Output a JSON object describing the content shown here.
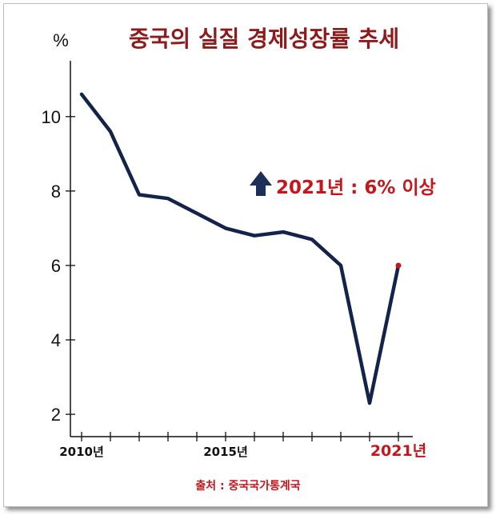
{
  "title": "중국의 실질 경제성장률 추세",
  "source": "출처 : 중국국가통계국",
  "colors": {
    "title": "#8e1b1b",
    "line": "#13234a",
    "highlight": "#c4171c",
    "arrow": "#1b2f57",
    "axis": "#111111"
  },
  "chart_data": {
    "type": "line",
    "title": "중국의 실질 경제성장률 추세",
    "ylabel": "%",
    "xlabel": "",
    "ylim": [
      1.4,
      11.5
    ],
    "xlim": [
      2010,
      2021
    ],
    "x": [
      2010,
      2011,
      2012,
      2013,
      2014,
      2015,
      2016,
      2017,
      2018,
      2019,
      2020,
      2021
    ],
    "series": [
      {
        "values": [
          10.6,
          9.6,
          7.9,
          7.8,
          7.4,
          7.0,
          6.8,
          6.9,
          6.7,
          6.0,
          2.3,
          6.0
        ]
      }
    ],
    "yticks": [
      2,
      4,
      6,
      8,
      10
    ],
    "xticks": [
      {
        "value": 2010,
        "label": "2010년"
      },
      {
        "value": 2015,
        "label": "2015년"
      },
      {
        "value": 2021,
        "label": "2021년",
        "highlight": true
      }
    ],
    "annotation": {
      "text": "2021년 : 6% 이상",
      "icon": "up-arrow-icon",
      "year": 2021
    },
    "grid": false,
    "legend": "none"
  }
}
